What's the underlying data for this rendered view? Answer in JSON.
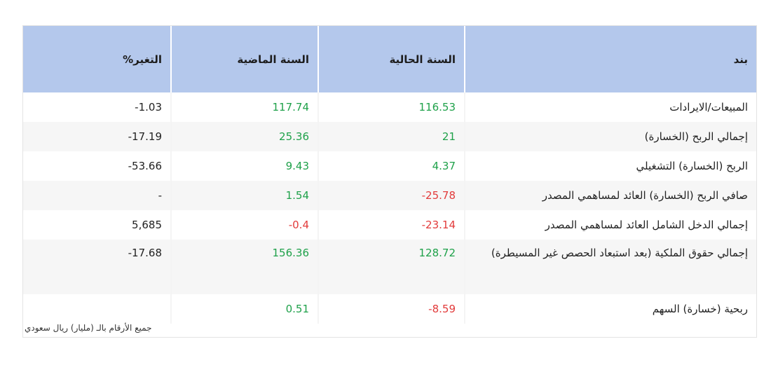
{
  "headers": {
    "item": "بند",
    "current": "السنة الحالية",
    "previous": "السنة الماضية",
    "change": "التغير%"
  },
  "rows": [
    {
      "item": "المبيعات/الايرادات",
      "current": "116.53",
      "previous": "117.74",
      "change": "1.03-"
    },
    {
      "item": "إجمالي الربح (الخسارة)",
      "current": "21",
      "previous": "25.36",
      "change": "17.19-"
    },
    {
      "item": "الربح (الخسارة) التشغيلي",
      "current": "4.37",
      "previous": "9.43",
      "change": "53.66-"
    },
    {
      "item": "صافي الربح (الخسارة) العائد لمساهمي المصدر",
      "current": "25.78-",
      "previous": "1.54",
      "change": "-"
    },
    {
      "item": "إجمالي الدخل الشامل العائد لمساهمي المصدر",
      "current": "23.14-",
      "previous": "0.4-",
      "change": "5,685"
    },
    {
      "item": "إجمالي حقوق الملكية (بعد استبعاد الحصص غير المسيطرة)",
      "current": "128.72",
      "previous": "156.36",
      "change": "17.68-"
    },
    {
      "item": "ربحية (خسارة) السهم",
      "current": "8.59-",
      "previous": "0.51",
      "change": ""
    }
  ],
  "footnote": "جميع الأرقام بالـ (مليار) ريال سعودي",
  "colors": {
    "header_bg": "#b4c8ec",
    "positive": "#1fa14a",
    "negative": "#e23b3b"
  }
}
